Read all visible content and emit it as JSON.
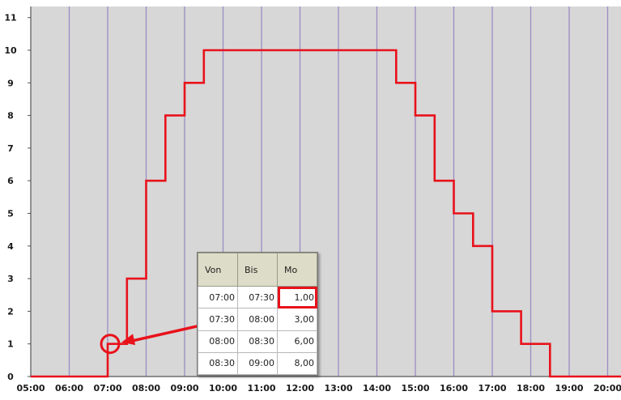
{
  "chart_data": {
    "type": "line",
    "step": true,
    "x_ticks": [
      "05:00",
      "06:00",
      "07:00",
      "08:00",
      "09:00",
      "10:00",
      "11:00",
      "12:00",
      "13:00",
      "14:00",
      "15:00",
      "16:00",
      "17:00",
      "18:00",
      "19:00",
      "20:00"
    ],
    "y_ticks": [
      "0",
      "1",
      "2",
      "3",
      "4",
      "5",
      "6",
      "7",
      "8",
      "9",
      "10",
      "11"
    ],
    "ylim": [
      0,
      11
    ],
    "xlim": [
      "05:00",
      "20:00"
    ],
    "grid": "vertical",
    "series": [
      {
        "color": "#e8121b",
        "points": [
          [
            "05:00",
            0
          ],
          [
            "07:00",
            0
          ],
          [
            "07:00",
            1
          ],
          [
            "07:30",
            1
          ],
          [
            "07:30",
            3
          ],
          [
            "08:00",
            3
          ],
          [
            "08:00",
            6
          ],
          [
            "08:30",
            6
          ],
          [
            "08:30",
            8
          ],
          [
            "09:00",
            8
          ],
          [
            "09:00",
            9
          ],
          [
            "09:30",
            9
          ],
          [
            "09:30",
            10
          ],
          [
            "14:30",
            10
          ],
          [
            "14:30",
            9
          ],
          [
            "15:00",
            9
          ],
          [
            "15:00",
            8
          ],
          [
            "15:30",
            8
          ],
          [
            "15:30",
            6
          ],
          [
            "16:00",
            6
          ],
          [
            "16:00",
            5
          ],
          [
            "16:30",
            5
          ],
          [
            "16:30",
            4
          ],
          [
            "17:00",
            4
          ],
          [
            "17:00",
            2
          ],
          [
            "17:45",
            2
          ],
          [
            "17:45",
            1
          ],
          [
            "18:30",
            1
          ],
          [
            "18:30",
            0
          ],
          [
            "20:30",
            0
          ]
        ]
      }
    ],
    "annotation": {
      "type": "circle-with-arrow",
      "at": [
        "07:00",
        1
      ],
      "points_to_cell": "1,00",
      "color": "#e8121b"
    }
  },
  "table": {
    "headers": [
      "Von",
      "Bis",
      "Mo"
    ],
    "rows": [
      [
        "07:00",
        "07:30",
        "1,00"
      ],
      [
        "07:30",
        "08:00",
        "3,00"
      ],
      [
        "08:00",
        "08:30",
        "6,00"
      ],
      [
        "08:30",
        "09:00",
        "8,00"
      ]
    ],
    "highlighted_cell": "1,00"
  },
  "colors": {
    "plot_background": "#d7d7d7",
    "grid_line": "#9b8cc4",
    "series": "#e8121b",
    "annotation": "#e8121b"
  }
}
